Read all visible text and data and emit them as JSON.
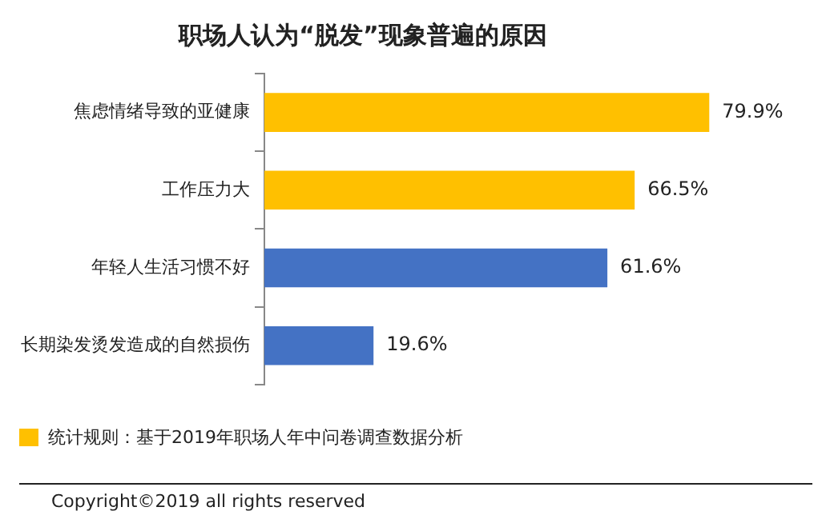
{
  "chart_data": {
    "type": "bar",
    "orientation": "horizontal",
    "title": "职场人认为“脱发”现象普遍的原因",
    "categories": [
      "焦虑情绪导致的亚健康",
      "工作压力大",
      "年轻人生活习惯不好",
      "长期染发烫发造成的自然损伤"
    ],
    "values": [
      79.9,
      66.5,
      61.6,
      19.6
    ],
    "colors": [
      "#ffc000",
      "#ffc000",
      "#4472c4",
      "#4472c4"
    ],
    "value_labels": [
      "79.9%",
      "66.5%",
      "61.6%",
      "19.6%"
    ],
    "tick_labels": "y",
    "grid": false,
    "legend": false,
    "annotations": [
      "统计规则：基于2019年职场人年中问卷调查数据分析",
      "Copyright©2019 all rights reserved"
    ]
  }
}
